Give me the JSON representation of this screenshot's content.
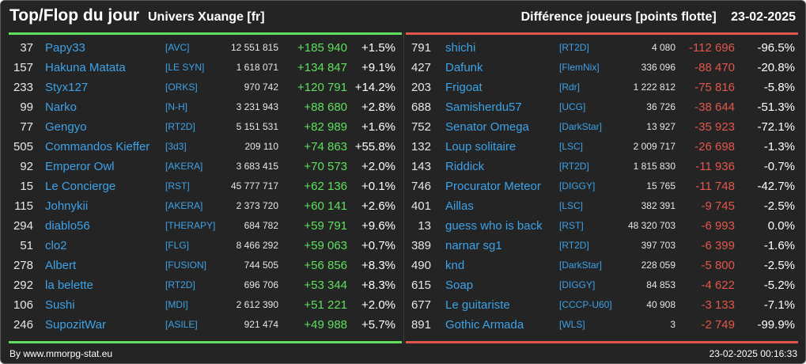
{
  "header": {
    "title": "Top/Flop du jour",
    "subtitle": "Univers Xuange [fr]",
    "metric": "Différence joueurs [points flotte]",
    "date": "23-02-2025"
  },
  "colors": {
    "top": "#5ee05e",
    "flop": "#e2564b",
    "link": "#3da2e8",
    "background": "#242424"
  },
  "top": [
    {
      "rank": "37",
      "name": "Papy33",
      "guild": "[AVC]",
      "points": "12 551 815",
      "diff": "+185 940",
      "pct": "+1.5%"
    },
    {
      "rank": "157",
      "name": "Hakuna Matata",
      "guild": "[LE SYN]",
      "points": "1 618 071",
      "diff": "+134 847",
      "pct": "+9.1%"
    },
    {
      "rank": "233",
      "name": "Styx127",
      "guild": "[ORKS]",
      "points": "970 742",
      "diff": "+120 791",
      "pct": "+14.2%"
    },
    {
      "rank": "99",
      "name": "Narko",
      "guild": "[N-H]",
      "points": "3 231 943",
      "diff": "+88 680",
      "pct": "+2.8%"
    },
    {
      "rank": "77",
      "name": "Gengyo",
      "guild": "[RT2D]",
      "points": "5 151 531",
      "diff": "+82 989",
      "pct": "+1.6%"
    },
    {
      "rank": "505",
      "name": "Commandos Kieffer",
      "guild": "[3d3]",
      "points": "209 110",
      "diff": "+74 863",
      "pct": "+55.8%"
    },
    {
      "rank": "92",
      "name": "Emperor Owl",
      "guild": "[AKERA]",
      "points": "3 683 415",
      "diff": "+70 573",
      "pct": "+2.0%"
    },
    {
      "rank": "15",
      "name": "Le Concierge",
      "guild": "[RST]",
      "points": "45 777 717",
      "diff": "+62 136",
      "pct": "+0.1%"
    },
    {
      "rank": "115",
      "name": "Johnykii",
      "guild": "[AKERA]",
      "points": "2 373 720",
      "diff": "+60 141",
      "pct": "+2.6%"
    },
    {
      "rank": "294",
      "name": "diablo56",
      "guild": "[THERAPY]",
      "points": "684 782",
      "diff": "+59 791",
      "pct": "+9.6%"
    },
    {
      "rank": "51",
      "name": "clo2",
      "guild": "[FLG]",
      "points": "8 466 292",
      "diff": "+59 063",
      "pct": "+0.7%"
    },
    {
      "rank": "278",
      "name": "Albert",
      "guild": "[FUSION]",
      "points": "744 505",
      "diff": "+56 856",
      "pct": "+8.3%"
    },
    {
      "rank": "292",
      "name": "la belette",
      "guild": "[RT2D]",
      "points": "696 706",
      "diff": "+53 344",
      "pct": "+8.3%"
    },
    {
      "rank": "106",
      "name": "Sushi",
      "guild": "[MDI]",
      "points": "2 612 390",
      "diff": "+51 221",
      "pct": "+2.0%"
    },
    {
      "rank": "246",
      "name": "SupozitWar",
      "guild": "[ASILE]",
      "points": "921 474",
      "diff": "+49 988",
      "pct": "+5.7%"
    }
  ],
  "flop": [
    {
      "rank": "791",
      "name": "shichi",
      "guild": "[RT2D]",
      "points": "4 080",
      "diff": "-112 696",
      "pct": "-96.5%"
    },
    {
      "rank": "427",
      "name": "Dafunk",
      "guild": "[FlemNix]",
      "points": "336 096",
      "diff": "-88 470",
      "pct": "-20.8%"
    },
    {
      "rank": "203",
      "name": "Frigoat",
      "guild": "[Rdr]",
      "points": "1 222 812",
      "diff": "-75 816",
      "pct": "-5.8%"
    },
    {
      "rank": "688",
      "name": "Samisherdu57",
      "guild": "[UCG]",
      "points": "36 726",
      "diff": "-38 644",
      "pct": "-51.3%"
    },
    {
      "rank": "752",
      "name": "Senator Omega",
      "guild": "[DarkStar]",
      "points": "13 927",
      "diff": "-35 923",
      "pct": "-72.1%"
    },
    {
      "rank": "132",
      "name": "Loup solitaire",
      "guild": "[LSC]",
      "points": "2 009 717",
      "diff": "-26 698",
      "pct": "-1.3%"
    },
    {
      "rank": "143",
      "name": "Riddick",
      "guild": "[RT2D]",
      "points": "1 815 830",
      "diff": "-11 936",
      "pct": "-0.7%"
    },
    {
      "rank": "746",
      "name": "Procurator Meteor",
      "guild": "[DIGGY]",
      "points": "15 765",
      "diff": "-11 748",
      "pct": "-42.7%"
    },
    {
      "rank": "401",
      "name": "Aillas",
      "guild": "[LSC]",
      "points": "382 391",
      "diff": "-9 745",
      "pct": "-2.5%"
    },
    {
      "rank": "13",
      "name": "guess who is back",
      "guild": "[RST]",
      "points": "48 320 703",
      "diff": "-6 993",
      "pct": "0.0%"
    },
    {
      "rank": "389",
      "name": "narnar sg1",
      "guild": "[RT2D]",
      "points": "397 703",
      "diff": "-6 399",
      "pct": "-1.6%"
    },
    {
      "rank": "490",
      "name": "knd",
      "guild": "[DarkStar]",
      "points": "228 059",
      "diff": "-5 800",
      "pct": "-2.5%"
    },
    {
      "rank": "615",
      "name": "Soap",
      "guild": "[DIGGY]",
      "points": "84 853",
      "diff": "-4 622",
      "pct": "-5.2%"
    },
    {
      "rank": "677",
      "name": "Le guitariste",
      "guild": "[CCCP-U60]",
      "points": "40 908",
      "diff": "-3 133",
      "pct": "-7.1%"
    },
    {
      "rank": "891",
      "name": "Gothic Armada",
      "guild": "[WLS]",
      "points": "3",
      "diff": "-2 749",
      "pct": "-99.9%"
    }
  ],
  "footer": {
    "source": "By www.mmorpg-stat.eu",
    "timestamp": "23-02-2025 00:16:33"
  }
}
